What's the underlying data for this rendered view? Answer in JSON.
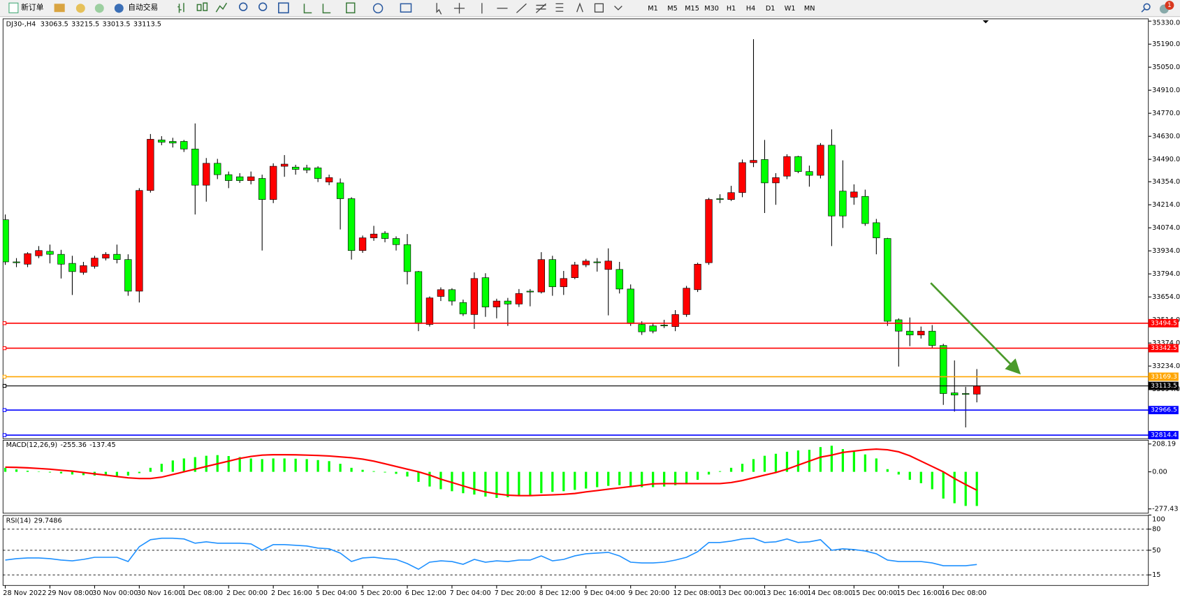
{
  "toolbar": {
    "new_order": "新订单",
    "auto_trading": "自动交易",
    "timeframes": [
      "M1",
      "M5",
      "M15",
      "M30",
      "H1",
      "H4",
      "D1",
      "W1",
      "MN"
    ],
    "alerts": "1"
  },
  "chart_data": [
    {
      "type": "candlestick",
      "title": "DJ30-,H4",
      "categories": [
        "28 Nov 2022",
        null,
        null,
        null,
        "29 Nov 08:00",
        null,
        null,
        null,
        "30 Nov 00:00",
        null,
        null,
        null,
        "30 Nov 16:00",
        null,
        null,
        null,
        "1 Dec 08:00",
        null,
        null,
        null,
        "2 Dec 00:00",
        null,
        null,
        null,
        "2 Dec 16:00",
        null,
        null,
        null,
        "5 Dec 04:00",
        null,
        null,
        null,
        "5 Dec 20:00",
        null,
        null,
        null,
        "6 Dec 12:00",
        null,
        null,
        null,
        "7 Dec 04:00",
        null,
        null,
        null,
        "7 Dec 20:00",
        null,
        null,
        null,
        "8 Dec 12:00",
        null,
        null,
        null,
        "9 Dec 04:00",
        null,
        null,
        null,
        "9 Dec 20:00",
        null,
        null,
        null,
        "12 Dec 08:00",
        null,
        null,
        null,
        "13 Dec 00:00",
        null,
        null,
        null,
        "13 Dec 16:00",
        null,
        null,
        null,
        "14 Dec 08:00",
        null,
        null,
        null,
        "15 Dec 00:00",
        null,
        null,
        null,
        "15 Dec 16:00",
        null,
        null,
        null,
        "16 Dec 08:00",
        null,
        null,
        null
      ],
      "open": [
        34123,
        33867,
        33853,
        33904,
        33931,
        33913,
        33858,
        33803,
        33840,
        33890,
        33913,
        33881,
        33689,
        34301,
        34608,
        34599,
        34599,
        34553,
        34333,
        34466,
        34397,
        34384,
        34361,
        34374,
        34246,
        34448,
        34443,
        34438,
        34438,
        34352,
        34347,
        34251,
        33936,
        34013,
        34041,
        34009,
        33972,
        33808,
        33487,
        33657,
        33698,
        33620,
        33547,
        33771,
        33593,
        33629,
        33611,
        33689,
        33684,
        33881,
        33716,
        33771,
        33849,
        33867,
        33821,
        33821,
        33702,
        33487,
        33478,
        33483,
        33474,
        33547,
        33698,
        33862,
        34251,
        34246,
        34288,
        34470,
        34489,
        34347,
        34388,
        34507,
        34416,
        34393,
        34576,
        34297,
        34260,
        34265,
        34105,
        34009,
        33515,
        33446,
        33423,
        33446,
        33359,
        33071,
        33067,
        33063.5
      ],
      "high": [
        34155,
        33890,
        33926,
        33963,
        33972,
        33940,
        33904,
        33867,
        33904,
        33926,
        33972,
        33913,
        34315,
        34644,
        34631,
        34621,
        34608,
        34708,
        34498,
        34493,
        34416,
        34406,
        34416,
        34397,
        34466,
        34516,
        34457,
        34457,
        34448,
        34397,
        34374,
        34260,
        34027,
        34086,
        34054,
        34022,
        34036,
        33812,
        33657,
        33712,
        33707,
        33638,
        33803,
        33798,
        33643,
        33648,
        33702,
        33702,
        33926,
        33904,
        33812,
        33867,
        33885,
        33890,
        33949,
        33867,
        33730,
        33506,
        33497,
        33515,
        33574,
        33721,
        33862,
        34256,
        34278,
        34329,
        34489,
        35220,
        34608,
        34406,
        34521,
        34512,
        34452,
        34589,
        34672,
        34484,
        34338,
        34306,
        34128,
        34013,
        33524,
        33529,
        33474,
        33483,
        33369,
        33268,
        33108,
        33215.5
      ],
      "low": [
        33849,
        33835,
        33835,
        33890,
        33858,
        33766,
        33666,
        33789,
        33826,
        33876,
        33858,
        33661,
        33620,
        34288,
        34576,
        34562,
        34535,
        34155,
        34233,
        34370,
        34315,
        34347,
        34338,
        33936,
        34224,
        34384,
        34397,
        34406,
        34352,
        34333,
        34064,
        33881,
        33922,
        33995,
        33986,
        33936,
        33730,
        33446,
        33474,
        33629,
        33602,
        33538,
        33460,
        33533,
        33524,
        33478,
        33593,
        33597,
        33675,
        33661,
        33666,
        33762,
        33835,
        33808,
        33542,
        33675,
        33478,
        33423,
        33433,
        33465,
        33446,
        33533,
        33684,
        33849,
        34224,
        34237,
        34260,
        34443,
        34164,
        34214,
        34370,
        34406,
        34324,
        34374,
        33963,
        34073,
        34214,
        34086,
        33913,
        33478,
        33231,
        33355,
        33401,
        33341,
        32998,
        32957,
        32861,
        33013.5
      ],
      "close": [
        33867,
        33862,
        33917,
        33936,
        33913,
        33853,
        33808,
        33844,
        33890,
        33913,
        33881,
        33689,
        34301,
        34612,
        34594,
        34589,
        34553,
        34333,
        34466,
        34397,
        34361,
        34361,
        34384,
        34246,
        34448,
        34461,
        34429,
        34425,
        34374,
        34379,
        34251,
        33936,
        34013,
        34036,
        34009,
        33972,
        33808,
        33492,
        33648,
        33698,
        33629,
        33551,
        33766,
        33593,
        33629,
        33611,
        33675,
        33684,
        33881,
        33716,
        33766,
        33849,
        33872,
        33862,
        33872,
        33702,
        33492,
        33442,
        33446,
        33478,
        33547,
        33707,
        33853,
        34246,
        34246,
        34288,
        34470,
        34484,
        34347,
        34379,
        34507,
        34416,
        34393,
        34576,
        34146,
        34146,
        34292,
        34100,
        34013,
        33506,
        33446,
        33423,
        33446,
        33359,
        33067,
        33058,
        33062,
        33113.5
      ],
      "up_color": "#ff0000",
      "down_color": "#00ff00",
      "ylim": [
        32792.5,
        35344
      ],
      "yticks": [
        {
          "value": 35330,
          "label": "35330.0"
        },
        {
          "value": 35190,
          "label": "35190.0"
        },
        {
          "value": 35050,
          "label": "35050.0"
        },
        {
          "value": 34910,
          "label": "34910.0"
        },
        {
          "value": 34770,
          "label": "34770.0"
        },
        {
          "value": 34630,
          "label": "34630.0"
        },
        {
          "value": 34490,
          "label": "34490.0"
        },
        {
          "value": 34354,
          "label": "34354.0"
        },
        {
          "value": 34214,
          "label": "34214.0"
        },
        {
          "value": 34074,
          "label": "34074.0"
        },
        {
          "value": 33934,
          "label": "33934.0"
        },
        {
          "value": 33794,
          "label": "33794.0"
        },
        {
          "value": 33654,
          "label": "33654.0"
        },
        {
          "value": 33514,
          "label": "33514.0"
        },
        {
          "value": 33374,
          "label": "33374.0"
        },
        {
          "value": 33234,
          "label": "33234.0"
        },
        {
          "value": 33094,
          "label": "33094.0"
        }
      ],
      "levels": [
        {
          "value": 33494.5,
          "color": "#ff0000"
        },
        {
          "value": 33342.5,
          "color": "#ff0000"
        },
        {
          "value": 33169.3,
          "color": "#ffa500"
        },
        {
          "value": 32966.5,
          "color": "#0000ff"
        },
        {
          "value": 32814.4,
          "color": "#0000ff"
        }
      ],
      "bid_color": "#000000"
    },
    {
      "type": "macd",
      "title": "MACD(12,26,9)",
      "values": [
        30,
        18,
        8,
        2,
        -5,
        -12,
        -20,
        -25,
        -28,
        -30,
        -32,
        -28,
        -10,
        30,
        60,
        85,
        100,
        110,
        120,
        125,
        118,
        110,
        100,
        95,
        100,
        100,
        98,
        95,
        88,
        80,
        60,
        30,
        15,
        5,
        -5,
        -15,
        -35,
        -75,
        -110,
        -130,
        -145,
        -160,
        -170,
        -185,
        -195,
        -190,
        -180,
        -175,
        -160,
        -150,
        -145,
        -135,
        -125,
        -115,
        -105,
        -100,
        -110,
        -115,
        -115,
        -110,
        -100,
        -85,
        -60,
        -20,
        5,
        30,
        60,
        95,
        120,
        135,
        150,
        160,
        165,
        185,
        195,
        170,
        155,
        130,
        100,
        20,
        -20,
        -60,
        -85,
        -130,
        -200,
        -235,
        -255,
        -255.36
      ],
      "signal": [
        35,
        33,
        30,
        25,
        20,
        12,
        5,
        -5,
        -15,
        -25,
        -35,
        -45,
        -50,
        -50,
        -40,
        -20,
        0,
        20,
        40,
        60,
        80,
        100,
        115,
        125,
        128,
        128,
        127,
        125,
        122,
        118,
        112,
        105,
        95,
        80,
        60,
        40,
        20,
        0,
        -25,
        -55,
        -80,
        -105,
        -130,
        -150,
        -165,
        -175,
        -178,
        -178,
        -175,
        -172,
        -168,
        -162,
        -150,
        -140,
        -130,
        -120,
        -110,
        -100,
        -90,
        -88,
        -88,
        -88,
        -88,
        -88,
        -88,
        -80,
        -65,
        -45,
        -25,
        -5,
        20,
        50,
        80,
        110,
        125,
        145,
        155,
        165,
        170,
        165,
        150,
        120,
        80,
        40,
        0,
        -50,
        -95,
        -137.45
      ],
      "color": "#00ff00",
      "signal_color": "#ff0000",
      "ylim": [
        -309.5,
        236.4
      ],
      "yticks": [
        208.19,
        {
          "value": 0,
          "label": "0.00"
        },
        -277.43
      ]
    },
    {
      "type": "line",
      "title": "RSI(14)",
      "values": [
        36,
        38,
        39,
        39,
        38,
        36,
        35,
        37,
        40,
        40,
        40,
        34,
        55,
        65,
        67,
        67,
        66,
        60,
        62,
        60,
        60,
        60,
        59,
        50,
        58,
        58,
        57,
        56,
        53,
        52,
        46,
        34,
        39,
        40,
        38,
        37,
        31,
        23,
        33,
        35,
        34,
        30,
        37,
        33,
        35,
        34,
        36,
        36,
        42,
        35,
        37,
        42,
        45,
        46,
        47,
        42,
        33,
        32,
        32,
        33,
        36,
        40,
        48,
        61,
        61,
        63,
        66,
        67,
        61,
        62,
        66,
        61,
        62,
        65,
        50,
        52,
        51,
        49,
        45,
        36,
        34,
        34,
        34,
        32,
        28,
        28,
        28,
        29.7486
      ],
      "color": "#1e90ff",
      "ylim": [
        0,
        99.4
      ],
      "yticks": [
        100,
        80,
        50,
        15
      ],
      "levels": [
        80,
        50,
        15
      ]
    }
  ]
}
